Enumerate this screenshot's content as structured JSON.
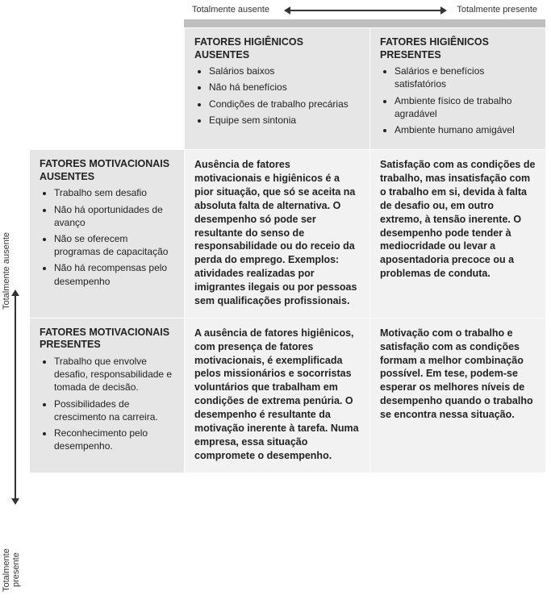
{
  "scale": {
    "top_left": "Totalmente ausente",
    "top_right": "Totalmente presente",
    "side_top": "Totalmente ausente",
    "side_bottom": "Totalmente presente"
  },
  "col_headers": {
    "left": {
      "title": "FATORES HIGIÊNICOS AUSENTES",
      "items": [
        "Salários baixos",
        "Não há benefícios",
        "Condições de trabalho precárias",
        "Equipe sem sintonia"
      ]
    },
    "right": {
      "title": "FATORES HIGIÊNICOS PRESENTES",
      "items": [
        "Salários e benefícios satisfatórios",
        "Ambiente físico de trabalho agradável",
        "Ambiente humano amigável"
      ]
    }
  },
  "row_headers": {
    "top": {
      "title": "FATORES MOTIVACIONAIS AUSENTES",
      "items": [
        "Trabalho sem desafio",
        "Não há oportunidades de avanço",
        "Não se oferecem programas de capacitação",
        "Não há recompensas pelo desempenho"
      ]
    },
    "bottom": {
      "title": "FATORES MOTIVACIONAIS PRESENTES",
      "items": [
        "Trabalho que envolve desafio, responsabilidade e tomada de decisão.",
        "Possibilidades de crescimento na carreira.",
        "Reconhecimento pelo desempenho."
      ]
    }
  },
  "cells": {
    "r1c1": "Ausência de fatores motivacionais e higiênicos é a pior situação, que só se aceita na absoluta falta de alternativa. O desempenho só pode ser resultante do senso de responsabilidade ou do receio da perda do emprego. Exemplos: atividades realizadas por imigrantes ilegais ou por pessoas sem qualificações profissionais.",
    "r1c2": "Satisfação com as condições de trabalho, mas insatisfação com o trabalho em si, devida à falta de desafio ou, em outro extremo, à tensão inerente. O desempenho pode tender à mediocridade ou levar a aposentadoria precoce ou a problemas de conduta.",
    "r2c1": "A ausência de fatores higiênicos, com presença de fatores motivacionais, é exemplificada pelos missionários e socorristas voluntários que trabalham em condições de extrema penúria. O desempenho é resultante da motivação inerente à tarefa. Numa empresa, essa situação compromete o desempenho.",
    "r2c2": "Motivação com o trabalho e satisfação com as condições formam a melhor combinação possível. Em tese, podem-se esperar os melhores níveis de desempenho quando o trabalho se encontra nessa situação."
  },
  "colors": {
    "header_bg": "#e6e6e6",
    "cell_bg": "#f2f2f2",
    "top_bar": "#bfbfbf",
    "text": "#222222",
    "arrow": "#333333"
  }
}
